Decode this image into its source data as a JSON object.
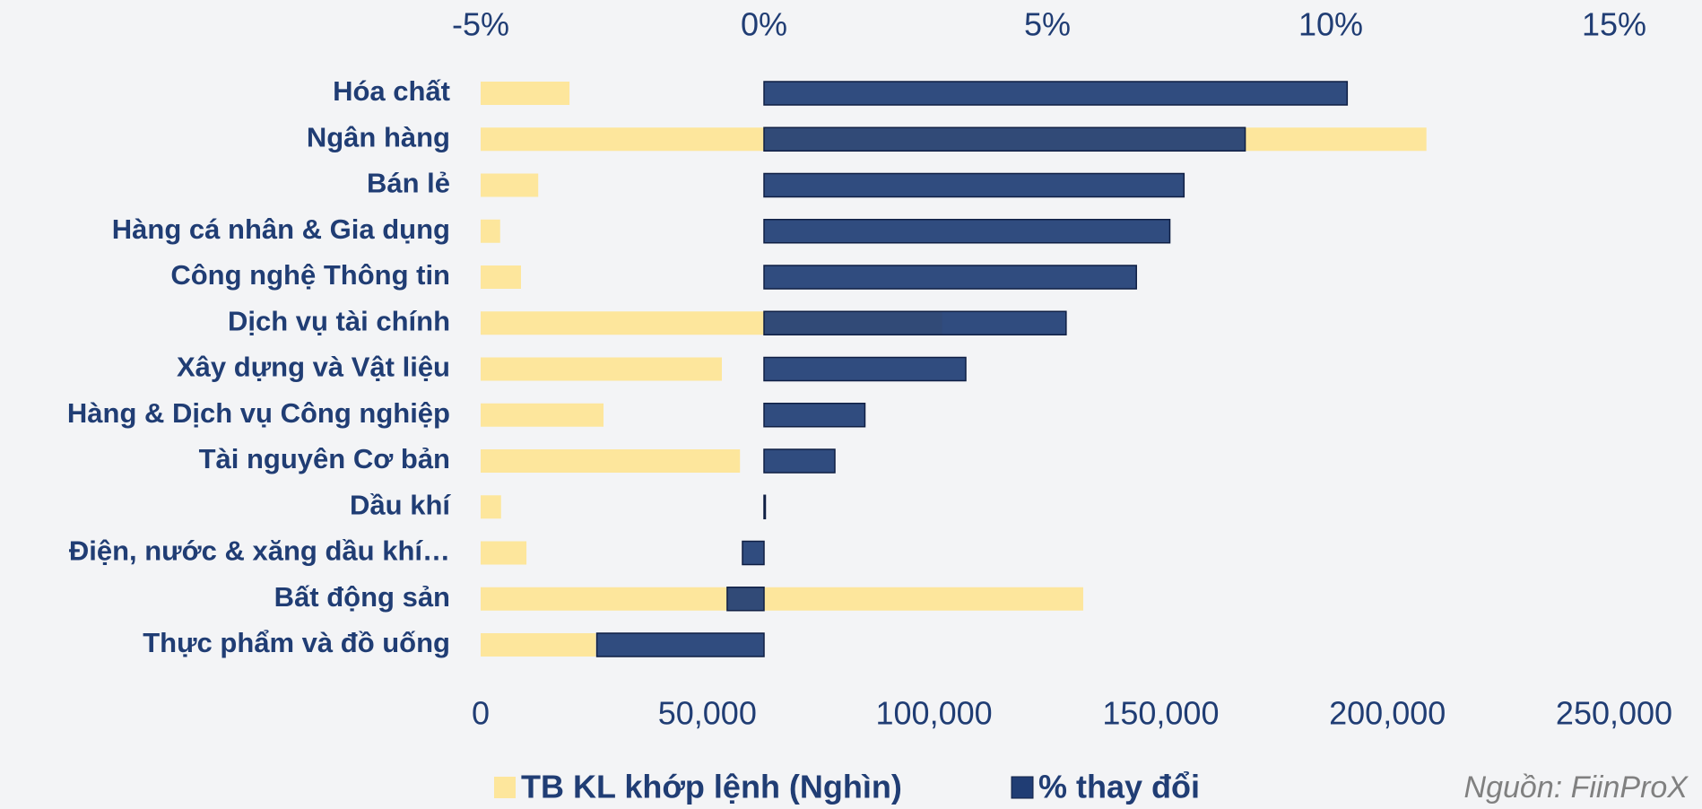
{
  "chart_data": {
    "type": "bar",
    "orientation": "horizontal",
    "categories": [
      "Hóa chất",
      "Ngân hàng",
      "Bán lẻ",
      "Hàng cá nhân & Gia dụng",
      "Công nghệ Thông tin",
      "Dịch vụ tài chính",
      "Xây dựng và Vật liệu",
      "Hàng & Dịch vụ Công nghiệp",
      "Tài nguyên Cơ bản",
      "Dầu khí",
      "Điện, nước & xăng dầu khí…",
      "Bất động sản",
      "Thực phẩm và đồ uống"
    ],
    "series": [
      {
        "name": "TB KL khớp lệnh (Nghìn)",
        "color": "#fde69c",
        "axis": "x",
        "values": [
          19600,
          208600,
          12700,
          4300,
          8900,
          101800,
          53200,
          27100,
          57200,
          4500,
          10100,
          132900,
          25400
        ]
      },
      {
        "name": "% thay đổi",
        "color": "#203d74",
        "axis": "x2",
        "values": [
          10.29,
          8.49,
          7.41,
          7.16,
          6.57,
          5.33,
          3.56,
          1.78,
          1.25,
          0.02,
          -0.38,
          -0.65,
          -2.95
        ]
      }
    ],
    "xlim": [
      0,
      250000
    ],
    "xticks": [
      0,
      {
        "value": 50000,
        "label": "50,000"
      },
      {
        "value": 100000,
        "label": "100,000"
      },
      {
        "value": 150000,
        "label": "150,000"
      },
      {
        "value": 200000,
        "label": "200,000"
      },
      {
        "value": 250000,
        "label": "250,000"
      }
    ],
    "x2lim": [
      -5,
      15
    ],
    "x2ticks": [
      {
        "value": -5,
        "label": "-5%"
      },
      {
        "value": 0,
        "label": "0%"
      },
      {
        "value": 5,
        "label": "5%"
      },
      {
        "value": 10,
        "label": "10%"
      },
      {
        "value": 15,
        "label": "15%"
      }
    ],
    "legend": "bottom",
    "source": "Nguồn: FiinProX"
  }
}
